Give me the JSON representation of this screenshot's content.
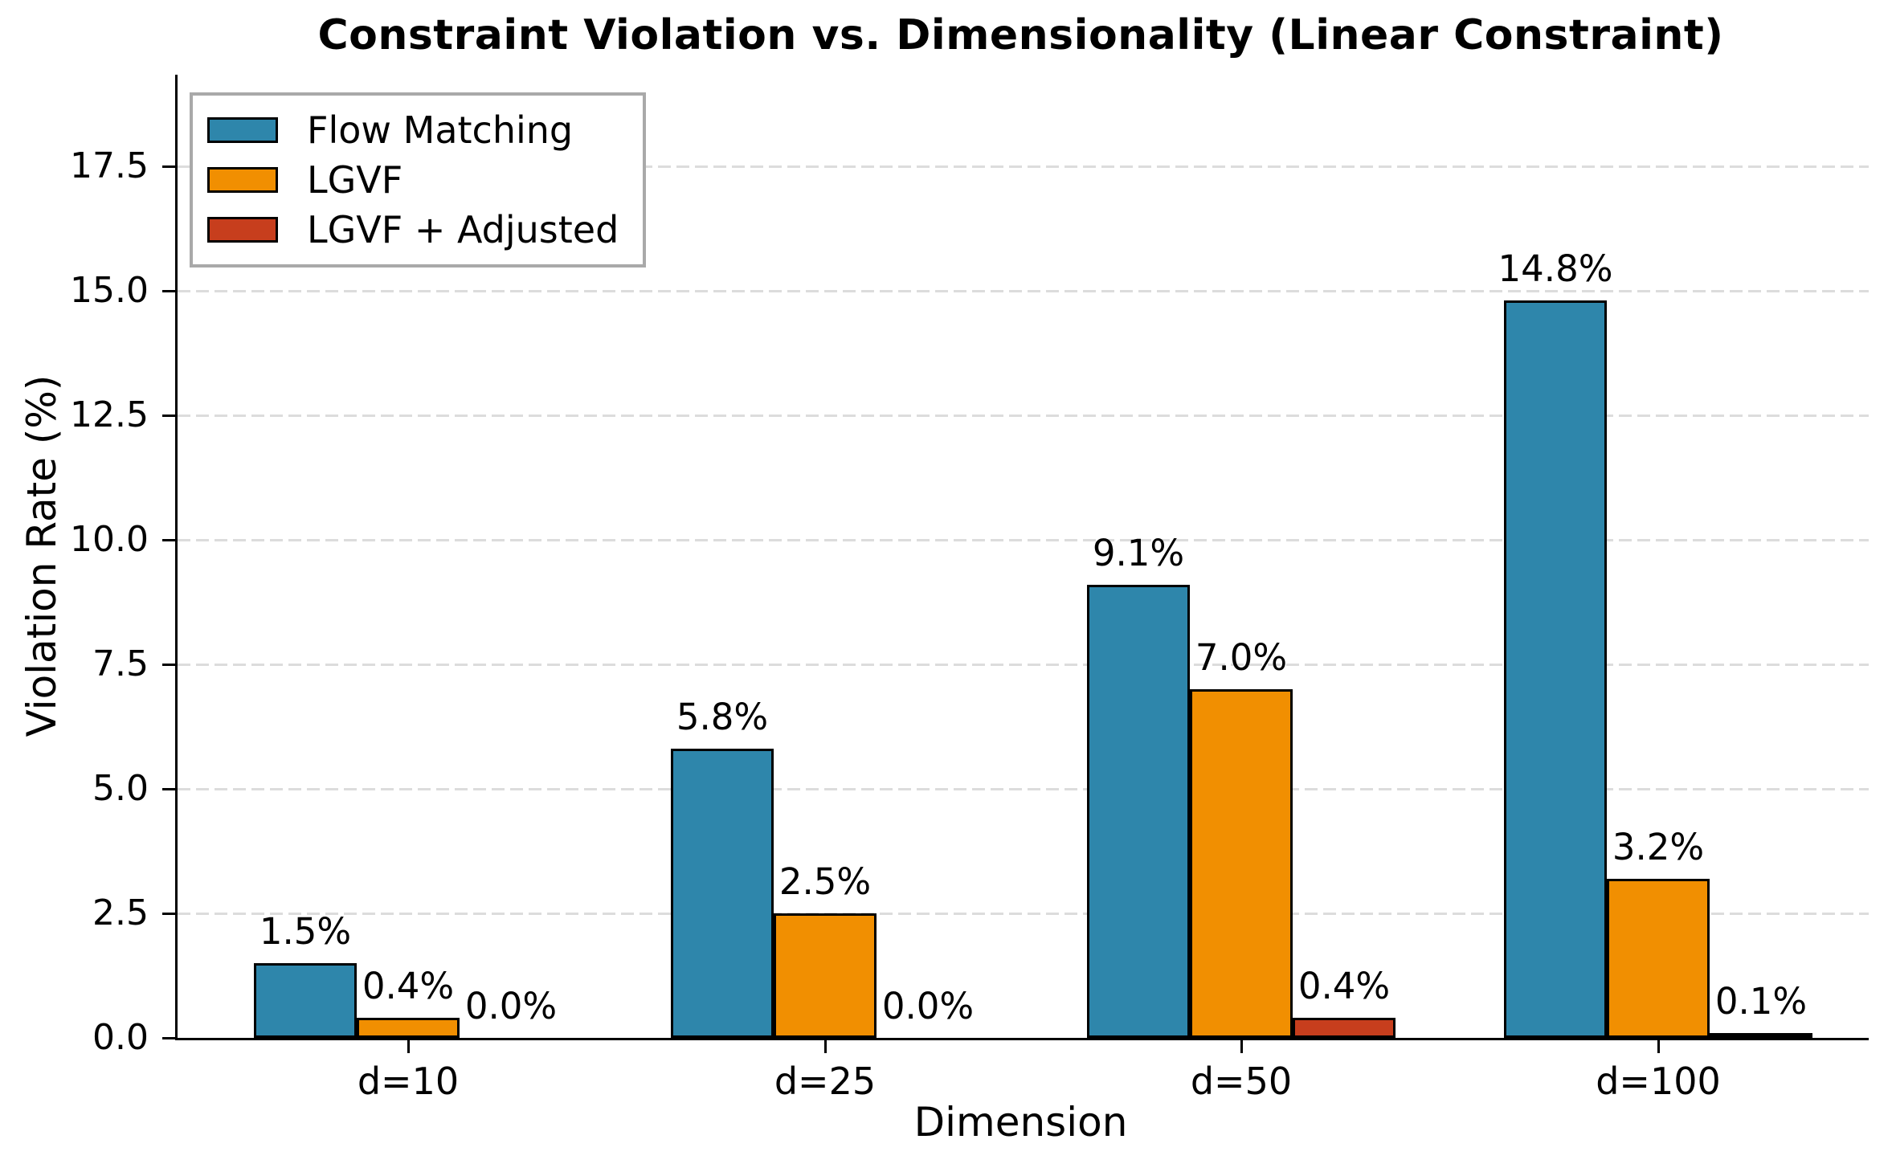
{
  "chart_data": {
    "type": "bar",
    "title": "Constraint Violation vs. Dimensionality (Linear Constraint)",
    "xlabel": "Dimension",
    "ylabel": "Violation Rate (%)",
    "categories": [
      "d=10",
      "d=25",
      "d=50",
      "d=100"
    ],
    "series": [
      {
        "name": "Flow Matching",
        "color": "#2E86AB",
        "values": [
          1.5,
          5.8,
          9.1,
          14.8
        ],
        "labels": [
          "1.5%",
          "5.8%",
          "9.1%",
          "14.8%"
        ]
      },
      {
        "name": "LGVF",
        "color": "#F18F01",
        "values": [
          0.4,
          2.5,
          7.0,
          3.2
        ],
        "labels": [
          "0.4%",
          "2.5%",
          "7.0%",
          "3.2%"
        ]
      },
      {
        "name": "LGVF + Adjusted",
        "color": "#C73E1D",
        "values": [
          0.0,
          0.0,
          0.4,
          0.1
        ],
        "labels": [
          "0.0%",
          "0.0%",
          "0.4%",
          "0.1%"
        ]
      }
    ],
    "y_ticks": [
      {
        "value": 0.0,
        "label": "0.0"
      },
      {
        "value": 2.5,
        "label": "2.5"
      },
      {
        "value": 5.0,
        "label": "5.0"
      },
      {
        "value": 7.5,
        "label": "7.5"
      },
      {
        "value": 10.0,
        "label": "10.0"
      },
      {
        "value": 12.5,
        "label": "12.5"
      },
      {
        "value": 15.0,
        "label": "15.0"
      },
      {
        "value": 17.5,
        "label": "17.5"
      }
    ],
    "ylim": [
      0,
      19.3
    ],
    "grid": "horizontal-dashed",
    "legend_position": "upper-left"
  },
  "colors": {
    "background": "#FFFFFF",
    "grid": "#DCDCDC",
    "axis": "#000000",
    "bar_edge": "#000000",
    "legend_border": "#A9A9A9",
    "text": "#000000"
  }
}
